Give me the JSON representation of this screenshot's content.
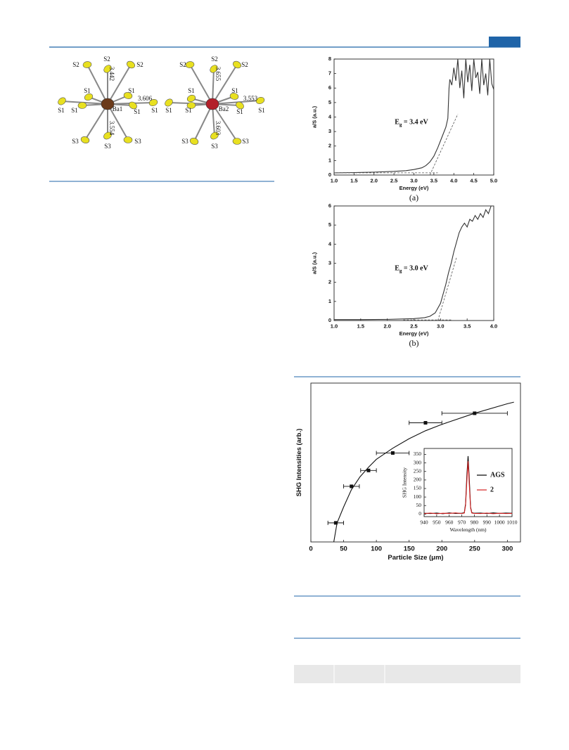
{
  "structure_figure": {
    "left_labels": [
      "S2",
      "S2",
      "S2",
      "S1",
      "S1",
      "3.606",
      "S1",
      "S1",
      "Ba1",
      "S1",
      "S1",
      "S3",
      "S3",
      "S3",
      "3.442",
      "3.554"
    ],
    "right_labels": [
      "S2",
      "S2",
      "S2",
      "S1",
      "S1",
      "3.553",
      "S1",
      "S1",
      "Ba2",
      "S1",
      "S1",
      "S3",
      "S3",
      "S3",
      "3.655",
      "3.603"
    ]
  },
  "chart_data": [
    {
      "type": "line",
      "xlim": [
        1,
        5
      ],
      "ylim": [
        0,
        8
      ],
      "xticks": [
        {
          "value": 1,
          "label": "1.0"
        },
        {
          "value": 1.5,
          "label": "1.5"
        },
        {
          "value": 2,
          "label": "2.0"
        },
        {
          "value": 2.5,
          "label": "2.5"
        },
        {
          "value": 3,
          "label": "3.0"
        },
        {
          "value": 3.5,
          "label": "3.5"
        },
        {
          "value": 4,
          "label": "4.0"
        },
        {
          "value": 4.5,
          "label": "4.5"
        },
        {
          "value": 5,
          "label": "5.0"
        }
      ],
      "yticks": [
        0,
        1,
        2,
        3,
        4,
        5,
        6,
        7,
        8
      ],
      "xlabel": "Energy (eV)",
      "ylabel": "a/S (a.u.)",
      "annotation": {
        "symbol": "E",
        "subscript": "g",
        "text": " = 3.4 eV"
      },
      "caption": "(a)",
      "series": [
        {
          "color": "#333333",
          "x": [
            1.0,
            1.5,
            2.0,
            2.5,
            2.8,
            3.0,
            3.2,
            3.3,
            3.4,
            3.5,
            3.6,
            3.7,
            3.8,
            3.85,
            3.88,
            3.9,
            3.95,
            4.0,
            4.05,
            4.1,
            4.15,
            4.2,
            4.25,
            4.3,
            4.35,
            4.4,
            4.45,
            4.5,
            4.55,
            4.6,
            4.65,
            4.7,
            4.75,
            4.8,
            4.85,
            4.9,
            4.95,
            5.0
          ],
          "values": [
            0.15,
            0.17,
            0.2,
            0.25,
            0.3,
            0.38,
            0.5,
            0.65,
            0.9,
            1.3,
            1.9,
            2.6,
            3.3,
            3.9,
            6.0,
            6.6,
            6.2,
            7.4,
            6.5,
            8,
            6.0,
            7.2,
            5.3,
            8,
            6.4,
            7.6,
            5.8,
            8,
            6.7,
            7.1,
            5.6,
            8,
            6.2,
            7.0,
            5.5,
            8,
            6.3,
            5.9
          ]
        },
        {
          "color": "#555555",
          "dashed": true,
          "x": [
            1.0,
            3.6
          ],
          "values": [
            0.15,
            0.15
          ]
        },
        {
          "color": "#555555",
          "dashed": true,
          "x": [
            3.4,
            4.1
          ],
          "values": [
            0,
            4.2
          ]
        }
      ]
    },
    {
      "type": "line",
      "xlim": [
        1,
        4
      ],
      "ylim": [
        0,
        6
      ],
      "xticks": [
        {
          "value": 1,
          "label": "1.0"
        },
        {
          "value": 1.5,
          "label": "1.5"
        },
        {
          "value": 2,
          "label": "2.0"
        },
        {
          "value": 2.5,
          "label": "2.5"
        },
        {
          "value": 3,
          "label": "3.0"
        },
        {
          "value": 3.5,
          "label": "3.5"
        },
        {
          "value": 4,
          "label": "4.0"
        }
      ],
      "yticks": [
        0,
        1,
        2,
        3,
        4,
        5,
        6
      ],
      "xlabel": "Energy (eV)",
      "ylabel": "a/S (a.u.)",
      "annotation": {
        "symbol": "E",
        "subscript": "g",
        "text": " = 3.0 eV"
      },
      "caption": "(b)",
      "series": [
        {
          "color": "#333333",
          "x": [
            1.0,
            1.5,
            2.0,
            2.5,
            2.7,
            2.8,
            2.9,
            3.0,
            3.05,
            3.1,
            3.15,
            3.2,
            3.25,
            3.3,
            3.35,
            3.4,
            3.45,
            3.5,
            3.55,
            3.6,
            3.65,
            3.7,
            3.75,
            3.8,
            3.85,
            3.9,
            3.95,
            4.0
          ],
          "values": [
            0.05,
            0.05,
            0.06,
            0.1,
            0.15,
            0.22,
            0.4,
            0.9,
            1.4,
            1.9,
            2.5,
            3.0,
            3.6,
            4.1,
            4.6,
            4.9,
            5.1,
            4.9,
            5.3,
            5.2,
            5.5,
            5.3,
            5.6,
            5.4,
            5.8,
            5.6,
            6.0,
            6.0
          ]
        },
        {
          "color": "#555555",
          "dashed": true,
          "x": [
            2.3,
            3.2
          ],
          "values": [
            0.03,
            0.03
          ]
        },
        {
          "color": "#555555",
          "dashed": true,
          "x": [
            2.95,
            3.3
          ],
          "values": [
            0,
            3.3
          ]
        }
      ]
    },
    {
      "type": "scatter",
      "xlim": [
        0,
        320
      ],
      "ylim": [
        0,
        100
      ],
      "xticks": [
        0,
        50,
        100,
        150,
        200,
        250,
        300
      ],
      "xlabel": "Particle Size (μm)",
      "ylabel": "SHG Intensities (arb.)",
      "series": [
        {
          "color": "#111111",
          "x": [
            38,
            62,
            88,
            125,
            175,
            250
          ],
          "values": [
            12,
            35,
            45,
            56,
            75,
            81
          ],
          "xerr": [
            12,
            12,
            12,
            25,
            25,
            50
          ]
        },
        {
          "color": "#111111",
          "line": true,
          "x": [
            35,
            40,
            50,
            62,
            75,
            88,
            100,
            125,
            150,
            175,
            200,
            250,
            300,
            310
          ],
          "values": [
            0,
            12,
            22,
            33,
            41,
            47,
            52,
            59,
            65,
            70,
            74,
            81,
            87,
            88
          ]
        }
      ]
    },
    {
      "type": "line",
      "xlim": [
        940,
        1010
      ],
      "ylim": [
        -15,
        385
      ],
      "xticks": [
        940,
        950,
        960,
        970,
        980,
        990,
        1000,
        1010
      ],
      "yticks": [
        0,
        50,
        100,
        150,
        200,
        250,
        300,
        350
      ],
      "xlabel": "Wavelength (nm)",
      "ylabel": "SHG Intensity",
      "legend": "right",
      "x": [
        940,
        945,
        950,
        955,
        960,
        965,
        970,
        972,
        973,
        974,
        975,
        976,
        977,
        978,
        980,
        985,
        990,
        995,
        1000,
        1005,
        1010
      ],
      "series": [
        {
          "name": "AGS",
          "color": "#000000",
          "values": [
            5,
            3,
            6,
            2,
            7,
            4,
            5,
            8,
            60,
            220,
            340,
            200,
            40,
            8,
            5,
            6,
            3,
            7,
            4,
            6,
            5
          ]
        },
        {
          "name": "2",
          "color": "#d62020",
          "values": [
            3,
            6,
            2,
            5,
            4,
            7,
            3,
            6,
            50,
            190,
            310,
            170,
            35,
            6,
            4,
            3,
            6,
            2,
            5,
            3,
            4
          ]
        }
      ]
    }
  ]
}
